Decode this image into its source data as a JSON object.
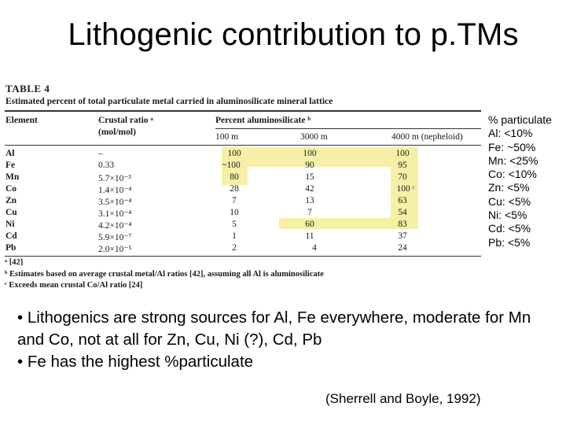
{
  "slide": {
    "title": "Lithogenic contribution to p.TMs"
  },
  "table": {
    "heading": "TABLE 4",
    "caption": "Estimated percent of total particulate metal carried in aluminosilicate mineral lattice",
    "col_element": "Element",
    "col_crustal_line1": "Crustal ratio ᵃ",
    "col_crustal_line2": "(mol/mol)",
    "col_percent": "Percent aluminosilicate ᵇ",
    "depths": [
      "100 m",
      "3000 m",
      "4000 m (nepheloid)"
    ],
    "rows": [
      {
        "element": "Al",
        "ratio": "–",
        "v100": "100",
        "v3000": "100",
        "v4000": "100"
      },
      {
        "element": "Fe",
        "ratio": "0.33",
        "v100": "~100",
        "v3000": "90",
        "v4000": "95"
      },
      {
        "element": "Mn",
        "ratio": "5.7×10⁻³",
        "v100": "80",
        "v3000": "15",
        "v4000": "70"
      },
      {
        "element": "Co",
        "ratio": "1.4×10⁻⁴",
        "v100": "28",
        "v3000": "42",
        "v4000": "100 ᶜ"
      },
      {
        "element": "Zn",
        "ratio": "3.5×10⁻⁴",
        "v100": "7",
        "v3000": "13",
        "v4000": "63"
      },
      {
        "element": "Cu",
        "ratio": "3.1×10⁻⁴",
        "v100": "10",
        "v3000": "7",
        "v4000": "54"
      },
      {
        "element": "Ni",
        "ratio": "4.2×10⁻⁴",
        "v100": "5",
        "v3000": "60",
        "v4000": "83"
      },
      {
        "element": "Cd",
        "ratio": "5.9×10⁻⁷",
        "v100": "1",
        "v3000": "11",
        "v4000": "37"
      },
      {
        "element": "Pb",
        "ratio": "2.0×10⁻⁵",
        "v100": "2",
        "v3000": "4",
        "v4000": "24"
      }
    ],
    "footnote_a": "ᵃ [42]",
    "footnote_b": "ᵇ Estimates based on average crustal metal/Al ratios [42], assuming all Al is aluminosilicate",
    "footnote_c": "ᶜ Exceeds mean crustal Co/Al ratio [24]"
  },
  "side_list": [
    "% particulate",
    "Al: <10%",
    "Fe: ~50%",
    "Mn: <25%",
    "Co: <10%",
    "Zn: <5%",
    "Cu: <5%",
    "Ni: <5%",
    "Cd: <5%",
    "Pb: <5%"
  ],
  "bullets": [
    "• Lithogenics are strong sources for Al, Fe everywhere, moderate for Mn and Co, not at all for Zn, Cu, Ni (?), Cd, Pb",
    "• Fe has the highest %particulate"
  ],
  "citation": "(Sherrell and Boyle, 1992)",
  "colors": {
    "highlight": "#f6f0a6",
    "text": "#000000"
  }
}
